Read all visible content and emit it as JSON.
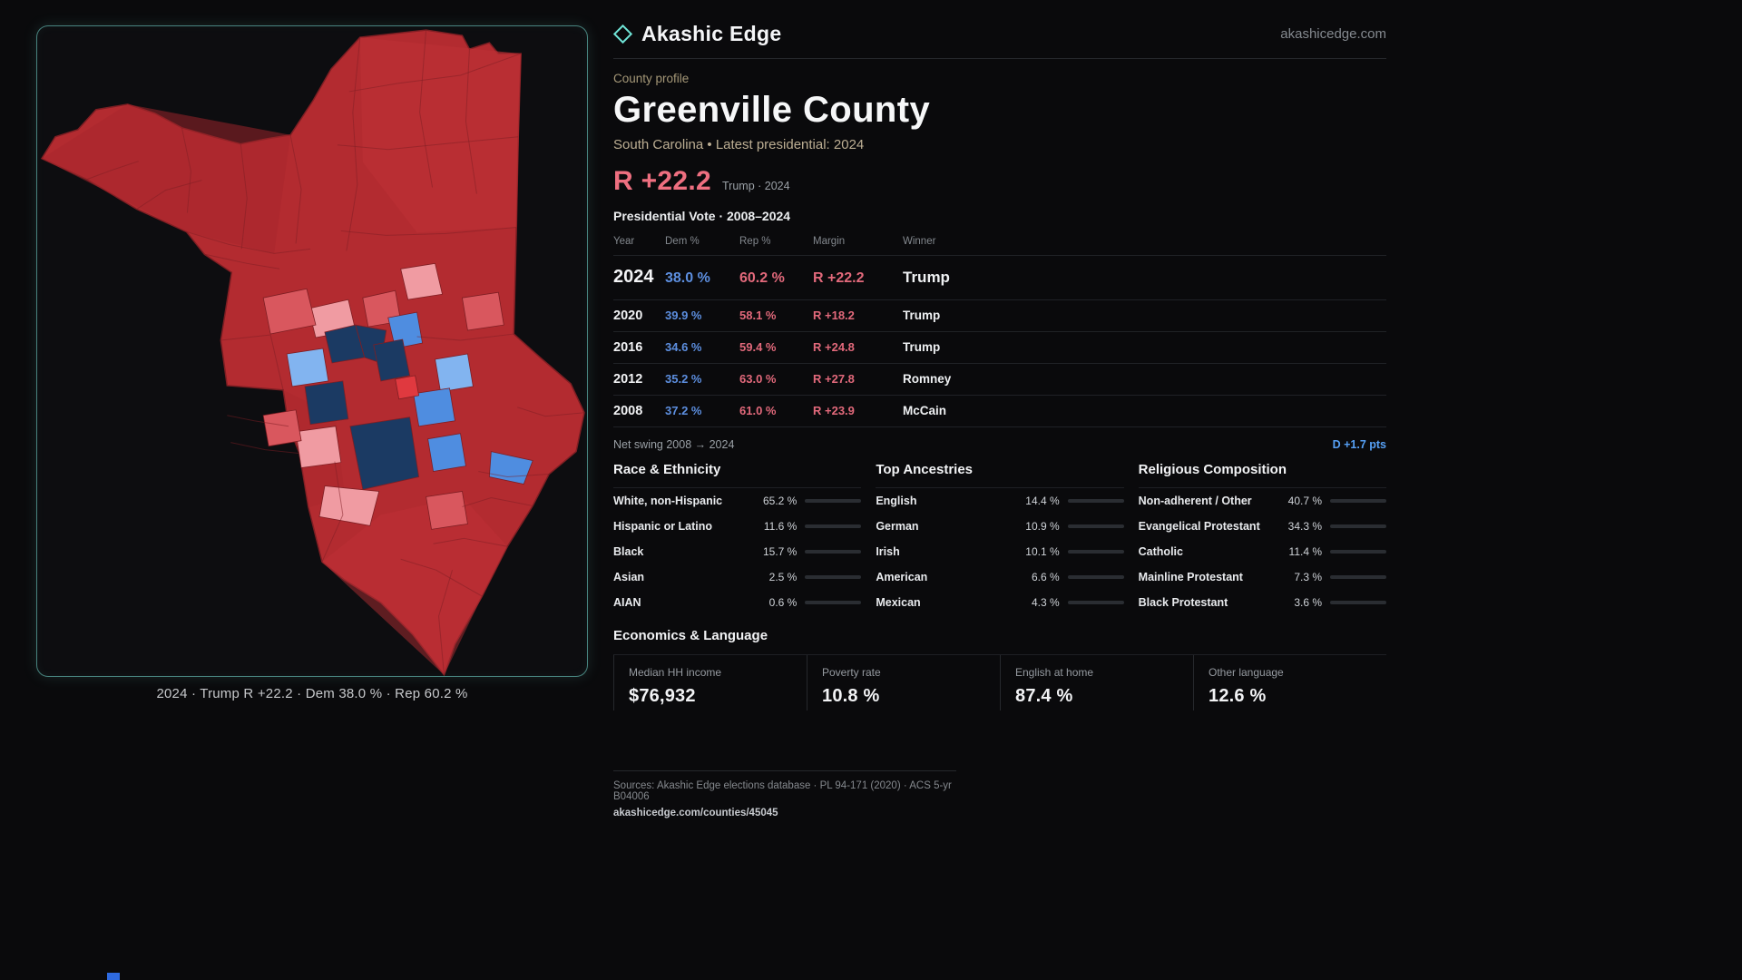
{
  "site": {
    "brand": "Akashic Edge",
    "domain_link": "akashicedge.com",
    "accent_teal": "#6fe3d6"
  },
  "map": {
    "caption": "2024 · Trump R +22.2 · Dem 38.0 % · Rep 60.2 %",
    "dominant_color": "#b32b30",
    "dem_colors": [
      "#1b3a63",
      "#4f8de0",
      "#82b4f0"
    ],
    "rep_colors": [
      "#b32b30",
      "#d9575e",
      "#f09ba2"
    ]
  },
  "profile": {
    "kicker": "County profile",
    "title": "Greenville County",
    "subtitle": "South Carolina • Latest presidential: 2024",
    "headline_margin": "R +22.2",
    "headline_note": "Trump · 2024",
    "table_title": "Presidential Vote · 2008–2024",
    "columns": {
      "year": "Year",
      "dem": "Dem %",
      "rep": "Rep %",
      "margin": "Margin",
      "winner": "Winner"
    },
    "rows": [
      {
        "year": "2024",
        "dem": "38.0 %",
        "rep": "60.2 %",
        "margin": "R +22.2",
        "winner": "Trump"
      },
      {
        "year": "2020",
        "dem": "39.9 %",
        "rep": "58.1 %",
        "margin": "R +18.2",
        "winner": "Trump"
      },
      {
        "year": "2016",
        "dem": "34.6 %",
        "rep": "59.4 %",
        "margin": "R +24.8",
        "winner": "Trump"
      },
      {
        "year": "2012",
        "dem": "35.2 %",
        "rep": "63.0 %",
        "margin": "R +27.8",
        "winner": "Romney"
      },
      {
        "year": "2008",
        "dem": "37.2 %",
        "rep": "61.0 %",
        "margin": "R +23.9",
        "winner": "McCain"
      }
    ],
    "net_swing_label": "Net swing 2008 → 2024",
    "net_swing_value": "D +1.7 pts"
  },
  "demographics": {
    "race": {
      "title": "Race & Ethnicity",
      "rows": [
        {
          "label": "White, non-Hispanic",
          "value": "65.2 %",
          "pct": 65.2,
          "color": "#9aa3ad"
        },
        {
          "label": "Hispanic or Latino",
          "value": "11.6 %",
          "pct": 11.6,
          "color": "#e5a43c"
        },
        {
          "label": "Black",
          "value": "15.7 %",
          "pct": 15.7,
          "color": "#8d7bea"
        },
        {
          "label": "Asian",
          "value": "2.5 %",
          "pct": 2.5,
          "color": "#3ec57f"
        },
        {
          "label": "AIAN",
          "value": "0.6 %",
          "pct": 0.6,
          "color": "#9aa3ad"
        }
      ]
    },
    "ancestries": {
      "title": "Top Ancestries",
      "rows": [
        {
          "label": "English",
          "value": "14.4 %",
          "pct": 14.4,
          "color": "#9aa3ad"
        },
        {
          "label": "German",
          "value": "10.9 %",
          "pct": 10.9,
          "color": "#9aa3ad"
        },
        {
          "label": "Irish",
          "value": "10.1 %",
          "pct": 10.1,
          "color": "#9aa3ad"
        },
        {
          "label": "American",
          "value": "6.6 %",
          "pct": 6.6,
          "color": "#9aa3ad"
        },
        {
          "label": "Mexican",
          "value": "4.3 %",
          "pct": 4.3,
          "color": "#e5c43c"
        }
      ]
    },
    "religion": {
      "title": "Religious Composition",
      "rows": [
        {
          "label": "Non-adherent / Other",
          "value": "40.7 %",
          "pct": 40.7,
          "color": "#9aa3ad"
        },
        {
          "label": "Evangelical Protestant",
          "value": "34.3 %",
          "pct": 34.3,
          "color": "#ee7586"
        },
        {
          "label": "Catholic",
          "value": "11.4 %",
          "pct": 11.4,
          "color": "#e5c43c"
        },
        {
          "label": "Mainline Protestant",
          "value": "7.3 %",
          "pct": 7.3,
          "color": "#5b96ea"
        },
        {
          "label": "Black Protestant",
          "value": "3.6 %",
          "pct": 3.6,
          "color": "#8d7bea"
        }
      ]
    }
  },
  "economics": {
    "title": "Economics & Language",
    "stats": [
      {
        "label": "Median HH income",
        "value": "$76,932"
      },
      {
        "label": "Poverty rate",
        "value": "10.8 %"
      },
      {
        "label": "English at home",
        "value": "87.4 %"
      },
      {
        "label": "Other language",
        "value": "12.6 %"
      }
    ]
  },
  "footer": {
    "sources": "Sources: Akashic Edge elections database · PL 94-171 (2020) · ACS 5-yr B04006",
    "permalink": "akashicedge.com/counties/45045"
  },
  "chart_data": [
    {
      "type": "table",
      "title": "Presidential Vote · 2008–2024",
      "columns": [
        "Year",
        "Dem %",
        "Rep %",
        "Margin",
        "Winner"
      ],
      "rows": [
        [
          2024,
          38.0,
          60.2,
          "R +22.2",
          "Trump"
        ],
        [
          2020,
          39.9,
          58.1,
          "R +18.2",
          "Trump"
        ],
        [
          2016,
          34.6,
          59.4,
          "R +24.8",
          "Trump"
        ],
        [
          2012,
          35.2,
          63.0,
          "R +27.8",
          "Romney"
        ],
        [
          2008,
          37.2,
          61.0,
          "R +23.9",
          "McCain"
        ]
      ],
      "net_swing": "D +1.7 pts"
    },
    {
      "type": "bar",
      "title": "Race & Ethnicity",
      "categories": [
        "White, non-Hispanic",
        "Hispanic or Latino",
        "Black",
        "Asian",
        "AIAN"
      ],
      "values": [
        65.2,
        11.6,
        15.7,
        2.5,
        0.6
      ],
      "unit": "%",
      "xlim": [
        0,
        100
      ],
      "orientation": "horizontal"
    },
    {
      "type": "bar",
      "title": "Top Ancestries",
      "categories": [
        "English",
        "German",
        "Irish",
        "American",
        "Mexican"
      ],
      "values": [
        14.4,
        10.9,
        10.1,
        6.6,
        4.3
      ],
      "unit": "%",
      "xlim": [
        0,
        100
      ],
      "orientation": "horizontal"
    },
    {
      "type": "bar",
      "title": "Religious Composition",
      "categories": [
        "Non-adherent / Other",
        "Evangelical Protestant",
        "Catholic",
        "Mainline Protestant",
        "Black Protestant"
      ],
      "values": [
        40.7,
        34.3,
        11.4,
        7.3,
        3.6
      ],
      "unit": "%",
      "xlim": [
        0,
        100
      ],
      "orientation": "horizontal"
    },
    {
      "type": "table",
      "title": "Economics & Language",
      "columns": [
        "Median HH income",
        "Poverty rate",
        "English at home",
        "Other language"
      ],
      "rows": [
        [
          "$76,932",
          "10.8 %",
          "87.4 %",
          "12.6 %"
        ]
      ]
    }
  ]
}
